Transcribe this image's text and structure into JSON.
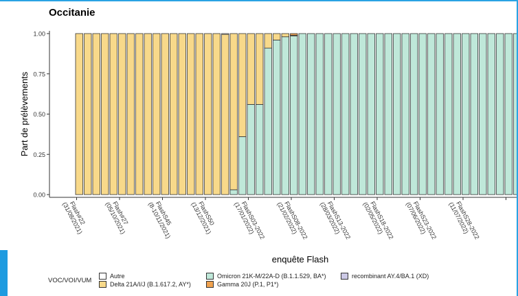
{
  "chart_data": {
    "type": "bar",
    "title": "Occitanie",
    "xlabel": "enquête Flash",
    "ylabel": "Part de prélèvements",
    "ylim": [
      0,
      1
    ],
    "yticks": [
      "0.00",
      "0.25",
      "0.50",
      "0.75",
      "1.00"
    ],
    "legend_title": "VOC/VOI/VUM",
    "x_tick_labels": [
      "Flash#22 (31/08/2021)",
      "Flash#27 (05/10/2021)",
      "FlashS45 (8-10/11/2021)",
      "FlashS50 (13/12/2021)",
      "FlashS03-2022 (17/01/2022)",
      "FlashS08-2022 (21/02/2022)",
      "FlashS13-2022 (28/03/2022)",
      "FlashS18-2022 (02/05/2022)",
      "FlashS23-2022 (07/06/2022)",
      "FlashS28-2022 (11/07/2022)",
      ""
    ],
    "series": [
      {
        "name": "Autre",
        "color": "#ffffff"
      },
      {
        "name": "Delta 21A/I/J (B.1.617.2, AY*)",
        "color": "#f8d98a"
      },
      {
        "name": "Omicron 21K-M/22A-D (B.1.1.529, BA*)",
        "color": "#bfe8d9"
      },
      {
        "name": "Gamma 20J (P.1, P1*)",
        "color": "#f0a24f"
      },
      {
        "name": "recombinant AY.4/BA.1 (XD)",
        "color": "#ccc9e6"
      }
    ],
    "omicron_share": [
      0,
      0,
      0,
      0,
      0,
      0,
      0,
      0,
      0,
      0,
      0,
      0,
      0,
      0,
      0,
      0,
      0,
      0,
      0.03,
      0.36,
      0.56,
      0.56,
      0.91,
      0.96,
      0.98,
      0.985,
      1,
      1,
      1,
      1,
      1,
      1,
      1,
      1,
      1,
      1,
      1,
      1,
      1,
      1,
      1,
      1,
      1,
      1,
      1,
      1,
      1,
      1,
      1,
      1,
      1,
      1,
      1
    ],
    "gamma_share": [
      0,
      0,
      0,
      0,
      0,
      0,
      0,
      0,
      0,
      0,
      0,
      0,
      0,
      0,
      0,
      0,
      0,
      0,
      0,
      0,
      0,
      0,
      0,
      0,
      0,
      0.01,
      0,
      0,
      0,
      0,
      0,
      0,
      0,
      0,
      0,
      0,
      0,
      0,
      0,
      0,
      0,
      0,
      0,
      0,
      0,
      0,
      0,
      0,
      0,
      0,
      0,
      0,
      0
    ],
    "autre_share": [
      0,
      0,
      0,
      0,
      0,
      0,
      0,
      0,
      0,
      0,
      0,
      0,
      0,
      0,
      0,
      0,
      0,
      0.005,
      0,
      0,
      0,
      0,
      0,
      0,
      0,
      0,
      0,
      0,
      0,
      0,
      0,
      0,
      0,
      0,
      0,
      0,
      0,
      0,
      0,
      0,
      0,
      0,
      0,
      0,
      0,
      0,
      0,
      0,
      0,
      0,
      0,
      0,
      0
    ]
  }
}
